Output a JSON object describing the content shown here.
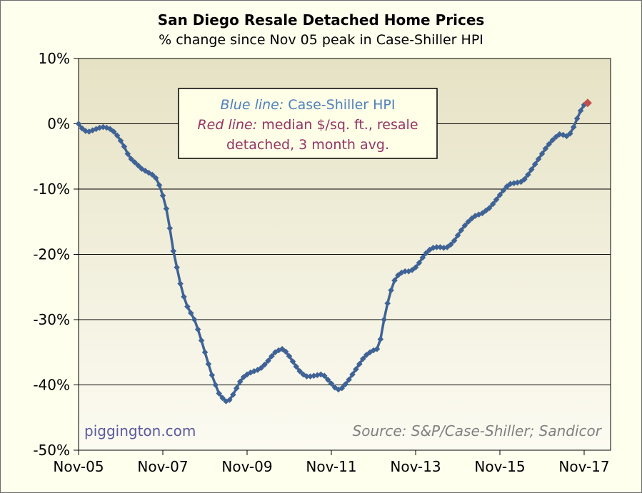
{
  "chart_data": {
    "type": "line",
    "title": "San Diego Resale Detached Home Prices",
    "subtitle": "% change since Nov 05 peak in Case-Shiller HPI",
    "ylim": [
      -50,
      10
    ],
    "yticks": [
      10,
      0,
      -10,
      -20,
      -30,
      -40,
      -50
    ],
    "ytick_labels": [
      "10%",
      "0%",
      "-10%",
      "-20%",
      "-30%",
      "-40%",
      "-50%"
    ],
    "xlim": [
      0,
      150
    ],
    "xticks": [
      0,
      24,
      48,
      72,
      96,
      120,
      144
    ],
    "xtick_labels": [
      "Nov-05",
      "Nov-07",
      "Nov-09",
      "Nov-11",
      "Nov-13",
      "Nov-15",
      "Nov-17"
    ],
    "grid": "horizontal",
    "series": [
      {
        "name": "Case-Shiller HPI",
        "color": "#3F6396",
        "x_unit": "months since Nov-05",
        "points": [
          [
            0,
            0
          ],
          [
            1,
            -0.7
          ],
          [
            2,
            -1.1
          ],
          [
            3,
            -1.2
          ],
          [
            4,
            -1
          ],
          [
            5,
            -0.8
          ],
          [
            6,
            -0.6
          ],
          [
            7,
            -0.5
          ],
          [
            8,
            -0.6
          ],
          [
            9,
            -0.8
          ],
          [
            10,
            -1.2
          ],
          [
            11,
            -1.8
          ],
          [
            12,
            -2.6
          ],
          [
            13,
            -3.5
          ],
          [
            14,
            -4.6
          ],
          [
            15,
            -5.4
          ],
          [
            16,
            -5.9
          ],
          [
            17,
            -6.4
          ],
          [
            18,
            -6.9
          ],
          [
            19,
            -7.2
          ],
          [
            20,
            -7.5
          ],
          [
            21,
            -7.8
          ],
          [
            22,
            -8.3
          ],
          [
            23,
            -9.4
          ],
          [
            24,
            -11
          ],
          [
            25,
            -13
          ],
          [
            26,
            -16
          ],
          [
            27,
            -19.5
          ],
          [
            28,
            -22
          ],
          [
            29,
            -24.5
          ],
          [
            30,
            -26.5
          ],
          [
            31,
            -28
          ],
          [
            32,
            -29
          ],
          [
            33,
            -30
          ],
          [
            34,
            -31.5
          ],
          [
            35,
            -33.2
          ],
          [
            36,
            -35
          ],
          [
            37,
            -36.8
          ],
          [
            38,
            -38.5
          ],
          [
            39,
            -40
          ],
          [
            40,
            -41.3
          ],
          [
            41,
            -42
          ],
          [
            42,
            -42.5
          ],
          [
            43,
            -42.3
          ],
          [
            44,
            -41.5
          ],
          [
            45,
            -40.5
          ],
          [
            46,
            -39.5
          ],
          [
            47,
            -38.8
          ],
          [
            48,
            -38.4
          ],
          [
            49,
            -38.1
          ],
          [
            50,
            -37.9
          ],
          [
            51,
            -37.7
          ],
          [
            52,
            -37.4
          ],
          [
            53,
            -36.9
          ],
          [
            54,
            -36.3
          ],
          [
            55,
            -35.6
          ],
          [
            56,
            -35
          ],
          [
            57,
            -34.7
          ],
          [
            58,
            -34.5
          ],
          [
            59,
            -34.9
          ],
          [
            60,
            -35.6
          ],
          [
            61,
            -36.4
          ],
          [
            62,
            -37.2
          ],
          [
            63,
            -37.9
          ],
          [
            64,
            -38.4
          ],
          [
            65,
            -38.7
          ],
          [
            66,
            -38.7
          ],
          [
            67,
            -38.6
          ],
          [
            68,
            -38.5
          ],
          [
            69,
            -38.4
          ],
          [
            70,
            -38.6
          ],
          [
            71,
            -39.2
          ],
          [
            72,
            -39.8
          ],
          [
            73,
            -40.4
          ],
          [
            74,
            -40.7
          ],
          [
            75,
            -40.5
          ],
          [
            76,
            -39.9
          ],
          [
            77,
            -39.2
          ],
          [
            78,
            -38.4
          ],
          [
            79,
            -37.6
          ],
          [
            80,
            -36.8
          ],
          [
            81,
            -36
          ],
          [
            82,
            -35.4
          ],
          [
            83,
            -35
          ],
          [
            84,
            -34.7
          ],
          [
            85,
            -34.5
          ],
          [
            86,
            -33
          ],
          [
            87,
            -30
          ],
          [
            88,
            -27.5
          ],
          [
            89,
            -25.5
          ],
          [
            90,
            -24
          ],
          [
            91,
            -23.2
          ],
          [
            92,
            -22.8
          ],
          [
            93,
            -22.6
          ],
          [
            94,
            -22.6
          ],
          [
            95,
            -22.4
          ],
          [
            96,
            -22
          ],
          [
            97,
            -21.3
          ],
          [
            98,
            -20.5
          ],
          [
            99,
            -19.8
          ],
          [
            100,
            -19.3
          ],
          [
            101,
            -19
          ],
          [
            102,
            -18.9
          ],
          [
            103,
            -18.9
          ],
          [
            104,
            -19
          ],
          [
            105,
            -18.9
          ],
          [
            106,
            -18.5
          ],
          [
            107,
            -17.9
          ],
          [
            108,
            -17.1
          ],
          [
            109,
            -16.3
          ],
          [
            110,
            -15.6
          ],
          [
            111,
            -15
          ],
          [
            112,
            -14.5
          ],
          [
            113,
            -14.1
          ],
          [
            114,
            -13.9
          ],
          [
            115,
            -13.7
          ],
          [
            116,
            -13.3
          ],
          [
            117,
            -12.9
          ],
          [
            118,
            -12.3
          ],
          [
            119,
            -11.6
          ],
          [
            120,
            -10.9
          ],
          [
            121,
            -10.2
          ],
          [
            122,
            -9.6
          ],
          [
            123,
            -9.2
          ],
          [
            124,
            -9.1
          ],
          [
            125,
            -9
          ],
          [
            126,
            -8.9
          ],
          [
            127,
            -8.5
          ],
          [
            128,
            -7.8
          ],
          [
            129,
            -7
          ],
          [
            130,
            -6.2
          ],
          [
            131,
            -5.4
          ],
          [
            132,
            -4.6
          ],
          [
            133,
            -3.8
          ],
          [
            134,
            -3.1
          ],
          [
            135,
            -2.5
          ],
          [
            136,
            -2
          ],
          [
            137,
            -1.6
          ],
          [
            138,
            -1.7
          ],
          [
            139,
            -1.9
          ],
          [
            140,
            -1.5
          ],
          [
            141,
            -0.5
          ],
          [
            142,
            0.8
          ],
          [
            143,
            2
          ],
          [
            144,
            2.9
          ]
        ]
      },
      {
        "name": "Median $/sq. ft., resale detached, 3 month avg.",
        "color": "#C0504D",
        "points": [
          [
            145,
            3.2
          ]
        ]
      }
    ],
    "legend_box": {
      "line1_label": "Blue line:",
      "line1_text": " Case-Shiller HPI",
      "line2_label": "Red line:",
      "line2_text": " median $/sq. ft., resale",
      "line3_text": "detached, 3 month avg."
    },
    "annotations": {
      "watermark": "piggington.com",
      "source": "Source: S&P/Case-Shiller; Sandicor"
    },
    "colors": {
      "plot_bg_top": "#E6E2C5",
      "plot_bg_bottom": "#FCFBF2",
      "legend_label_blue": "#4F81BD",
      "legend_label_red": "#943464",
      "watermark": "#5A5A9E",
      "source": "#808080"
    }
  }
}
